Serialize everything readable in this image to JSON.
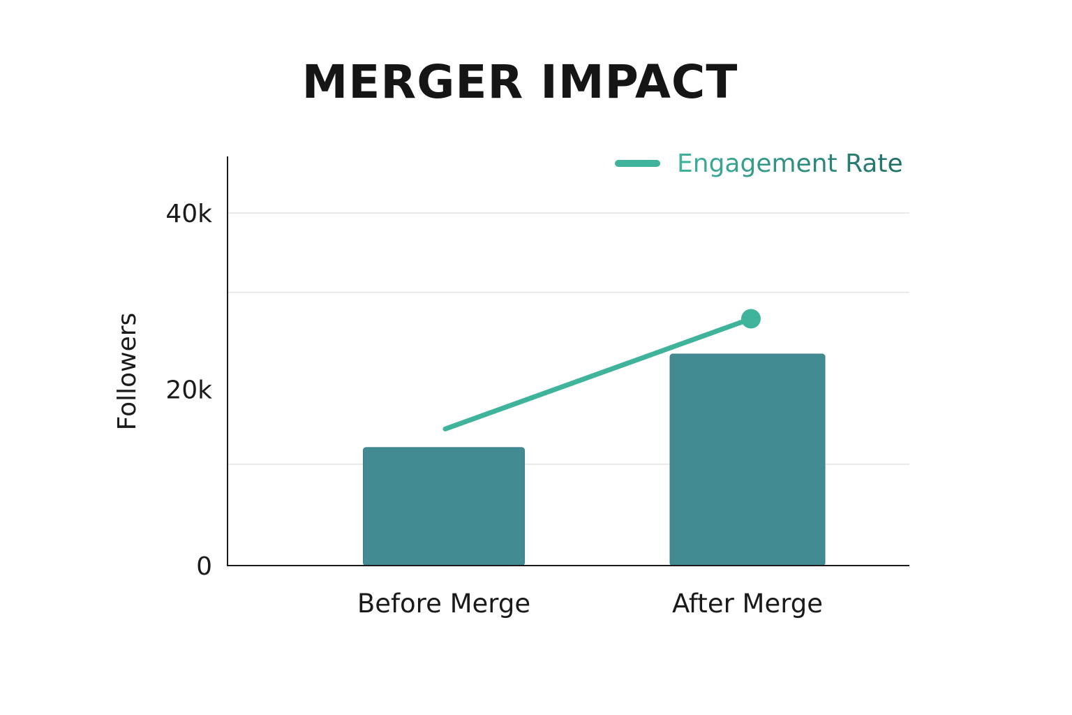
{
  "chart_data": {
    "type": "bar",
    "title": "MERGER IMPACT",
    "categories": [
      "Before Merge",
      "After Merge"
    ],
    "ylabel": "Followers",
    "xlabel": "",
    "ylim": [
      0,
      46000
    ],
    "yticks": [
      {
        "value": 0,
        "label": "0"
      },
      {
        "value": 20000,
        "label": "20k"
      },
      {
        "value": 40000,
        "label": "40k"
      }
    ],
    "gridlines": [
      11500,
      31000,
      40000
    ],
    "grid": true,
    "legend_position": "top-right",
    "series": [
      {
        "name": "",
        "type": "bar",
        "values": [
          13400,
          24000
        ],
        "color": "#428B93"
      },
      {
        "name": "Engagement Rate",
        "type": "line",
        "values": [
          15500,
          28000
        ],
        "color": "#3FB39B"
      }
    ]
  }
}
